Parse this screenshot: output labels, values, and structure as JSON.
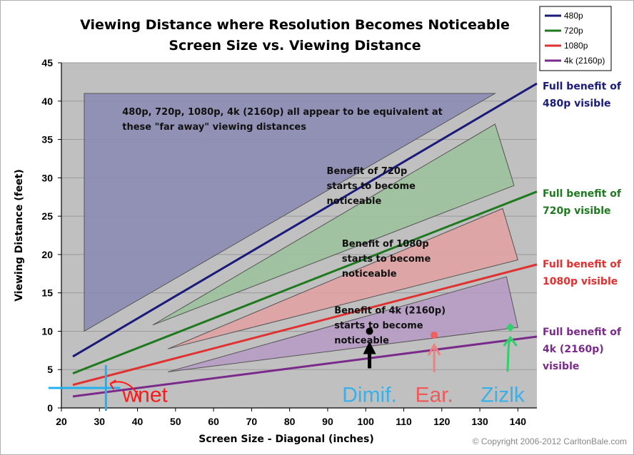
{
  "chart_data": {
    "type": "line",
    "title": "Viewing Distance where Resolution Becomes Noticeable",
    "subtitle": "Screen Size vs. Viewing Distance",
    "xlabel": "Screen Size - Diagonal (inches)",
    "ylabel": "Viewing Distance (feet)",
    "xlim": [
      20,
      145
    ],
    "ylim": [
      0,
      45
    ],
    "x_ticks": [
      "20",
      "30",
      "40",
      "50",
      "60",
      "70",
      "80",
      "90",
      "100",
      "110",
      "120",
      "130",
      "140"
    ],
    "y_ticks": [
      "0",
      "5",
      "10",
      "15",
      "20",
      "25",
      "30",
      "35",
      "40",
      "45"
    ],
    "legend_placement": "top-right",
    "series": [
      {
        "name": "480p",
        "color": "#1a1a7a",
        "x": [
          23,
          145
        ],
        "y": [
          6.7,
          42.3
        ]
      },
      {
        "name": "720p",
        "color": "#1f7a1f",
        "x": [
          23,
          145
        ],
        "y": [
          4.5,
          28.2
        ]
      },
      {
        "name": "1080p",
        "color": "#e03030",
        "x": [
          23,
          145
        ],
        "y": [
          3.0,
          18.7
        ]
      },
      {
        "name": "4k (2160p)",
        "color": "#7a2a8a",
        "x": [
          23,
          145
        ],
        "y": [
          1.5,
          9.3
        ]
      }
    ],
    "regions": [
      {
        "fill": "#8a8ab4",
        "points": [
          [
            26,
            41
          ],
          [
            134,
            41
          ],
          [
            26,
            10
          ]
        ]
      },
      {
        "fill": "#9cc29c",
        "points": [
          [
            44,
            10.8
          ],
          [
            134,
            37
          ],
          [
            139,
            29
          ]
        ]
      },
      {
        "fill": "#e0a0a0",
        "points": [
          [
            48,
            7.7
          ],
          [
            136,
            26
          ],
          [
            140,
            19.3
          ]
        ]
      },
      {
        "fill": "#b69ac4",
        "points": [
          [
            48,
            4.7
          ],
          [
            137,
            17.1
          ],
          [
            140,
            10.5
          ]
        ]
      }
    ],
    "zone_labels": [
      {
        "lines": [
          "480p, 720p, 1080p, 4k (2160p) all appear to be equivalent at",
          "these \"far away\" viewing distances"
        ],
        "x": 36,
        "y": 38.2
      },
      {
        "lines": [
          "Benefit of 720p",
          "starts to become",
          "noticeable"
        ],
        "x": 104,
        "y": 30.5
      },
      {
        "lines": [
          "Benefit of 1080p",
          "starts to become",
          "noticeable"
        ],
        "x": 108,
        "y": 21
      },
      {
        "lines": [
          "Benefit of 4k (2160p)",
          "starts to become",
          "noticeable"
        ],
        "x": 106,
        "y": 12.3
      }
    ],
    "benefit_labels": [
      {
        "lines": [
          "Full benefit of",
          "480p visible"
        ],
        "color": "#1a1a7a",
        "y": 41.5
      },
      {
        "lines": [
          "Full benefit of",
          "720p visible"
        ],
        "color": "#1f7a1f",
        "y": 27.5
      },
      {
        "lines": [
          "Full benefit of",
          "1080p visible"
        ],
        "color": "#e03030",
        "y": 18.3
      },
      {
        "lines": [
          "Full benefit of",
          "4k (2160p)",
          "visible"
        ],
        "color": "#7a2a8a",
        "y": 9.5
      }
    ],
    "annotations": [
      {
        "text": "wnet",
        "color": "#ff1a1a",
        "x": 31.7,
        "y": 2.6,
        "label_x": 42,
        "label_y": 0.8
      },
      {
        "text": "Dimif.",
        "color": "#3ab0e8",
        "x": 101,
        "y": 10,
        "label_x": 101,
        "label_y": 0.8
      },
      {
        "text": "Ear.",
        "color": "#f05a5a",
        "x": 118,
        "y": 9.5,
        "label_x": 118,
        "label_y": 0.8
      },
      {
        "text": "Zizlk",
        "color": "#3ab0e8",
        "x": 138,
        "y": 10.5,
        "label_x": 136,
        "label_y": 0.8
      }
    ],
    "copyright": "© Copyright 2006-2012 CarltonBale.com"
  },
  "colors": {
    "plot_background": "#c0c0c0",
    "grid": "#9a9a9a"
  }
}
